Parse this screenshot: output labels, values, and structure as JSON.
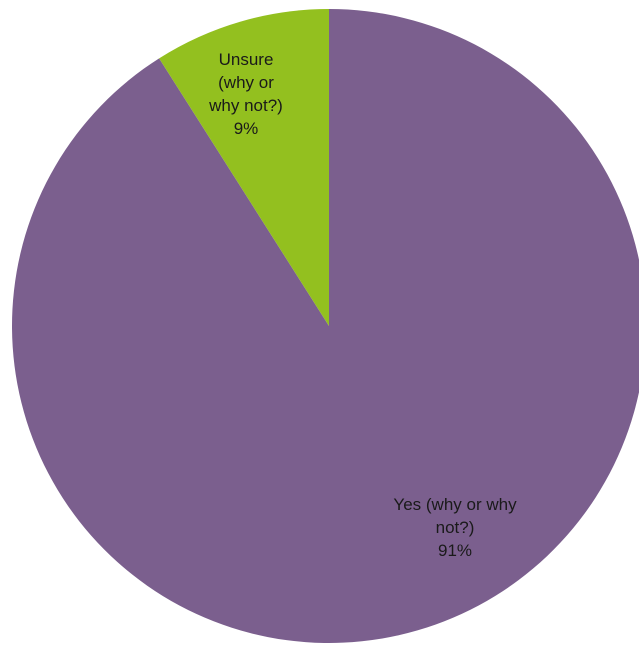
{
  "chart_data": {
    "type": "pie",
    "slices": [
      {
        "label_lines": [
          "Yes (why or why",
          "not?)"
        ],
        "percent_label": "91%",
        "value": 91,
        "color": "#7b5f8e"
      },
      {
        "label_lines": [
          "Unsure",
          "(why or",
          "why not?)"
        ],
        "percent_label": "9%",
        "value": 9,
        "color": "#93c01f"
      }
    ],
    "legend": "none"
  }
}
